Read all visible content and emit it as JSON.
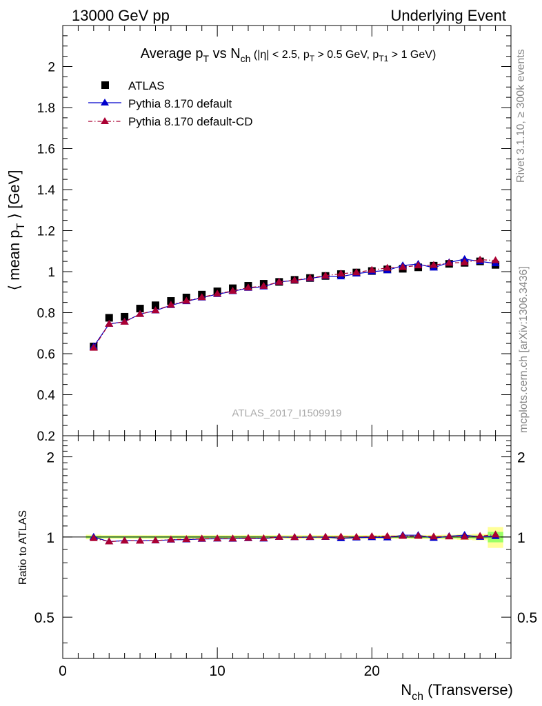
{
  "header": {
    "left": "13000 GeV pp",
    "right": "Underlying Event"
  },
  "side_labels": {
    "rivet": "Rivet 3.1.10, ≥ 300k events",
    "mcplots": "mcplots.cern.ch [arXiv:1306.3436]"
  },
  "colors": {
    "atlas": "#000000",
    "pythia_default": "#0000cc",
    "pythia_cd": "#aa0033",
    "band_outer": "#ffff99",
    "band_inner": "#99ff66"
  },
  "chart_data": [
    {
      "type": "scatter",
      "title": "Average pT vs Nch (|η| < 2.5, pT > 0.5 GeV, pT1 > 1 GeV)",
      "title_parts": {
        "a": "Average p",
        "a_sub": "T",
        "b": " vs N",
        "b_sub": "ch",
        "c": " (|η| < 2.5, p",
        "c_sub": "T",
        "d": " > 0.5 GeV, p",
        "d_sub": "T1",
        "e": " > 1 GeV)"
      },
      "ylabel": "⟨ mean pT ⟩ [GeV]",
      "ylabel_parts": {
        "a": "⟨ mean p",
        "sub": "T",
        "b": " ⟩ [GeV]"
      },
      "watermark": "ATLAS_2017_I1509919",
      "xlim": [
        0,
        29
      ],
      "ylim": [
        0.2,
        2.2
      ],
      "yticks": [
        0.2,
        0.4,
        0.6,
        0.8,
        1,
        1.2,
        1.4,
        1.6,
        1.8,
        2
      ],
      "ytick_labels": [
        "0.2",
        "0.4",
        "0.6",
        "0.8",
        "1",
        "1.2",
        "1.4",
        "1.6",
        "1.8",
        "2"
      ],
      "legend_position": "top-left",
      "x": [
        2,
        3,
        4,
        5,
        6,
        7,
        8,
        9,
        10,
        11,
        12,
        13,
        14,
        15,
        16,
        17,
        18,
        19,
        20,
        21,
        22,
        23,
        24,
        25,
        26,
        27,
        28
      ],
      "series": [
        {
          "name": "ATLAS",
          "marker": "square",
          "values": [
            0.635,
            0.775,
            0.78,
            0.82,
            0.836,
            0.857,
            0.874,
            0.888,
            0.904,
            0.919,
            0.931,
            0.941,
            0.95,
            0.96,
            0.969,
            0.979,
            0.988,
            0.996,
            1.003,
            1.011,
            1.014,
            1.021,
            1.029,
            1.038,
            1.043,
            1.05,
            1.033
          ]
        },
        {
          "name": "Pythia 8.170 default",
          "marker": "triangle",
          "values": [
            0.635,
            0.745,
            0.756,
            0.793,
            0.81,
            0.836,
            0.855,
            0.873,
            0.89,
            0.904,
            0.92,
            0.927,
            0.95,
            0.957,
            0.967,
            0.978,
            0.976,
            0.99,
            1.0,
            1.006,
            1.03,
            1.037,
            1.019,
            1.045,
            1.061,
            1.05,
            1.04
          ]
        },
        {
          "name": "Pythia 8.170 default-CD",
          "marker": "triangle",
          "values": [
            0.628,
            0.745,
            0.755,
            0.793,
            0.811,
            0.838,
            0.857,
            0.875,
            0.892,
            0.906,
            0.922,
            0.93,
            0.95,
            0.958,
            0.969,
            0.98,
            0.99,
            0.996,
            1.008,
            1.018,
            1.022,
            1.03,
            1.032,
            1.042,
            1.045,
            1.058,
            1.055
          ]
        }
      ]
    },
    {
      "type": "line",
      "ylabel": "Ratio to ATLAS",
      "xlabel": "Nch (Transverse)",
      "xlabel_parts": {
        "a": "N",
        "sub": "ch",
        "b": " (Transverse)"
      },
      "xlim": [
        0,
        29
      ],
      "ylim": [
        0.35,
        2.4
      ],
      "log_y": true,
      "xticks": [
        0,
        10,
        20
      ],
      "xtick_labels": [
        "0",
        "10",
        "20"
      ],
      "yticks": [
        0.5,
        1,
        2
      ],
      "ytick_labels": [
        "0.5",
        "1",
        "2"
      ],
      "x": [
        2,
        3,
        4,
        5,
        6,
        7,
        8,
        9,
        10,
        11,
        12,
        13,
        14,
        15,
        16,
        17,
        18,
        19,
        20,
        21,
        22,
        23,
        24,
        25,
        26,
        27,
        28
      ],
      "series": [
        {
          "name": "Pythia 8.170 default",
          "values": [
            1.0,
            0.961,
            0.969,
            0.967,
            0.969,
            0.976,
            0.978,
            0.983,
            0.985,
            0.984,
            0.988,
            0.985,
            1.0,
            0.997,
            0.998,
            0.999,
            0.988,
            0.994,
            0.997,
            0.995,
            1.016,
            1.016,
            0.99,
            1.007,
            1.017,
            1.0,
            1.007
          ]
        },
        {
          "name": "Pythia 8.170 default-CD",
          "values": [
            0.989,
            0.961,
            0.968,
            0.967,
            0.97,
            0.978,
            0.981,
            0.985,
            0.987,
            0.986,
            0.99,
            0.988,
            1.0,
            0.998,
            1.0,
            1.001,
            1.002,
            1.0,
            1.005,
            1.007,
            1.008,
            1.009,
            1.003,
            1.004,
            1.002,
            1.008,
            1.021
          ]
        }
      ],
      "band_halfwidth": [
        0.01,
        0.008,
        0.008,
        0.008,
        0.008,
        0.008,
        0.008,
        0.008,
        0.008,
        0.008,
        0.008,
        0.008,
        0.008,
        0.008,
        0.008,
        0.008,
        0.008,
        0.008,
        0.008,
        0.008,
        0.008,
        0.009,
        0.009,
        0.01,
        0.012,
        0.014,
        0.045
      ]
    }
  ]
}
